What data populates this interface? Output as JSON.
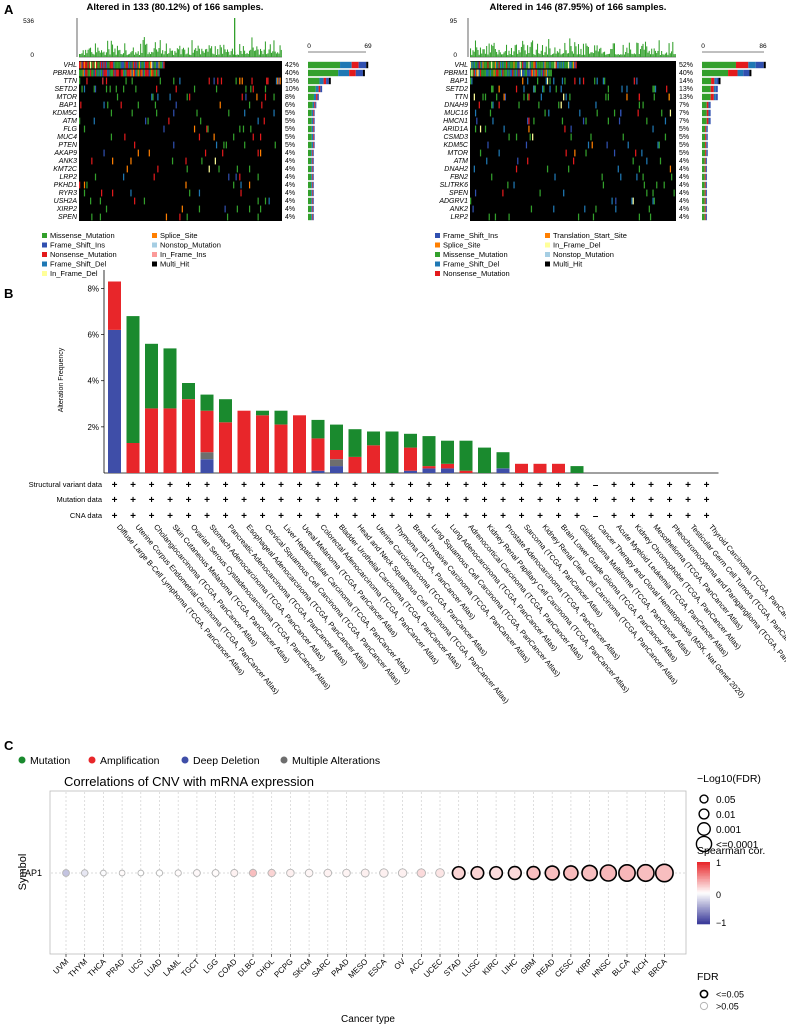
{
  "panel_labels": [
    "A",
    "B",
    "C"
  ],
  "colors": {
    "Missense_Mutation": "#33a02c",
    "Frame_Shift_Ins": "#3050b0",
    "Nonsense_Mutation": "#e31a1c",
    "Frame_Shift_Del": "#1f78b4",
    "In_Frame_Del": "#ffff99",
    "Splice_Site": "#ff7f00",
    "Nonstop_Mutation": "#a6cee3",
    "In_Frame_Ins": "#fb9a99",
    "Multi_Hit": "#000000",
    "Translation_Start_Site": "#ff7f00",
    "oncoprint_bg": "#cfcfcf",
    "mutation": "#1a8a2e",
    "amplification": "#e8262a",
    "deep_deletion": "#3f4ea8",
    "multiple_alterations": "#6e6e6e",
    "spearman_high": "#e8262a",
    "spearman_mid": "#ffffff",
    "spearman_low": "#3b3b9a"
  },
  "chart_data": [
    {
      "type": "heatmap",
      "title": "Altered in 133 (80.12%) of 166 samples.",
      "tmb_axis_ticks": [
        "536",
        "0"
      ],
      "bar_axis_ticks": [
        "0",
        "69"
      ],
      "genes": [
        "VHL",
        "PBRM1",
        "TTN",
        "SETD2",
        "MTOR",
        "BAP1",
        "KDM5C",
        "ATM",
        "FLG",
        "MUC4",
        "PTEN",
        "AKAP9",
        "ANK3",
        "KMT2C",
        "LRP2",
        "PKHD1",
        "RYR3",
        "USH2A",
        "XIRP2",
        "SPEN"
      ],
      "percents": [
        "42%",
        "40%",
        "15%",
        "10%",
        "8%",
        "6%",
        "5%",
        "5%",
        "5%",
        "5%",
        "5%",
        "4%",
        "4%",
        "4%",
        "4%",
        "4%",
        "4%",
        "4%",
        "4%",
        "4%"
      ],
      "pct_values": [
        42,
        40,
        15,
        10,
        8,
        6,
        5,
        5,
        5,
        5,
        5,
        4,
        4,
        4,
        4,
        4,
        4,
        4,
        4,
        4
      ],
      "legend": [
        "Missense_Mutation",
        "Splice_Site",
        "Frame_Shift_Ins",
        "Nonstop_Mutation",
        "Nonsense_Mutation",
        "In_Frame_Ins",
        "Frame_Shift_Del",
        "Multi_Hit",
        "In_Frame_Del"
      ],
      "samples": 166
    },
    {
      "type": "heatmap",
      "title": "Altered in 146 (87.95%) of 166 samples.",
      "tmb_axis_ticks": [
        "95",
        "0"
      ],
      "bar_axis_ticks": [
        "0",
        "86"
      ],
      "genes": [
        "VHL",
        "PBRM1",
        "BAP1",
        "SETD2",
        "TTN",
        "DNAH9",
        "MUC16",
        "HMCN1",
        "ARID1A",
        "CSMD3",
        "KDM5C",
        "MTOR",
        "ATM",
        "DNAH2",
        "FBN2",
        "SLITRK6",
        "SPEN",
        "ADGRV1",
        "ANK2",
        "LRP2"
      ],
      "percents": [
        "52%",
        "40%",
        "14%",
        "13%",
        "13%",
        "7%",
        "7%",
        "7%",
        "5%",
        "5%",
        "5%",
        "5%",
        "4%",
        "4%",
        "4%",
        "4%",
        "4%",
        "4%",
        "4%",
        "4%"
      ],
      "pct_values": [
        52,
        40,
        14,
        13,
        13,
        7,
        7,
        7,
        5,
        5,
        5,
        5,
        4,
        4,
        4,
        4,
        4,
        4,
        4,
        4
      ],
      "legend": [
        "Frame_Shift_Ins",
        "Translation_Start_Site",
        "Splice_Site",
        "In_Frame_Del",
        "Missense_Mutation",
        "Nonstop_Mutation",
        "Frame_Shift_Del",
        "Multi_Hit",
        "Nonsense_Mutation"
      ],
      "samples": 166
    },
    {
      "type": "bar",
      "ylabel": "Alteration Frequency",
      "yticks": [
        "8%",
        "6%",
        "4%",
        "2%"
      ],
      "ylim": [
        0,
        8.8
      ],
      "row_labels": [
        "Structural variant data",
        "Mutation data",
        "CNA data"
      ],
      "legend": [
        "Mutation",
        "Amplification",
        "Deep Deletion",
        "Multiple Alterations"
      ],
      "categories": [
        "Diffuse Large B-Cell Lymphoma (TCGA, PanCancer Atlas)",
        "Uterine Corpus Endometrial Carcinoma (TCGA, PanCancer Atlas)",
        "Cholangiocarcinoma (TCGA, PanCancer Atlas)",
        "Skin Cutaneous Melanoma (TCGA, PanCancer Atlas)",
        "Ovarian Serous Cystadenocarcinoma (TCGA, PanCancer Atlas)",
        "Stomach Adenocarcinoma (TCGA, PanCancer Atlas)",
        "Pancreatic Adenocarcinoma (TCGA, PanCancer Atlas)",
        "Esophageal Adenocarcinoma (TCGA, PanCancer Atlas)",
        "Cervical Squamous Cell Carcinoma (TCGA, PanCancer Atlas)",
        "Liver Hepatocellular Carcinoma (TCGA, PanCancer Atlas)",
        "Uveal Melanoma (TCGA, PanCancer Atlas)",
        "Colorectal Adenocarcinoma (TCGA, PanCancer Atlas)",
        "Bladder Urothelial Carcinoma (TCGA, PanCancer Atlas)",
        "Head and Neck Squamous Cell Carcinoma (TCGA, PanCancer Atlas)",
        "Uterine Carcinosarcoma (TCGA, PanCancer Atlas)",
        "Thymoma (TCGA, PanCancer Atlas)",
        "Breast Invasive Carcinoma (TCGA, PanCancer Atlas)",
        "Lung Squamous Cell Carcinoma (TCGA, PanCancer Atlas)",
        "Lung Adenocarcinoma (TCGA, PanCancer Atlas)",
        "Adrenocortical Carcinoma (TCGA, PanCancer Atlas)",
        "Kidney Renal Papillary Cell Carcinoma (TCGA, PanCancer Atlas)",
        "Prostate Adenocarcinoma (TCGA, PanCancer Atlas)",
        "Sarcoma (TCGA, PanCancer Atlas)",
        "Kidney Renal Clear Cell Carcinoma (TCGA, PanCancer Atlas)",
        "Brain Lower Grade Glioma (TCGA, PanCancer Atlas)",
        "Glioblastoma Multiforme (TCGA, PanCancer Atlas)",
        "Cancer Therapy and Clonal Hematopoiesis (MSK, Nat Genet 2020)",
        "Acute Myeloid Leukemia (TCGA, PanCancer Atlas)",
        "Kidney Chromophobe (TCGA, PanCancer Atlas)",
        "Mesothelioma (TCGA, PanCancer Atlas)",
        "Pheochromocytoma and Paraganglioma (TCGA, PanCancer Atlas)",
        "Testicular Germ Cell Tumors (TCGA, PanCancer Atlas)",
        "Thyroid Carcinoma (TCGA, PanCancer Atlas)"
      ],
      "series": [
        {
          "name": "Deep Deletion",
          "values": [
            6.2,
            0,
            0,
            0,
            0,
            0.6,
            0,
            0,
            0,
            0,
            0,
            0.1,
            0.3,
            0,
            0,
            0,
            0.1,
            0.2,
            0.2,
            0,
            0,
            0.2,
            0,
            0,
            0,
            0,
            0,
            0,
            0,
            0,
            0,
            0,
            0
          ]
        },
        {
          "name": "Multiple Alterations",
          "values": [
            0,
            0,
            0,
            0,
            0,
            0.3,
            0,
            0,
            0,
            0,
            0,
            0,
            0.3,
            0,
            0,
            0,
            0,
            0,
            0,
            0,
            0,
            0,
            0,
            0,
            0,
            0,
            0,
            0,
            0,
            0,
            0,
            0,
            0
          ]
        },
        {
          "name": "Amplification",
          "values": [
            2.1,
            1.3,
            2.8,
            2.8,
            3.2,
            1.8,
            2.2,
            2.7,
            2.5,
            2.1,
            2.5,
            1.4,
            0.4,
            0.7,
            1.2,
            0,
            1.0,
            0.1,
            0.2,
            0.1,
            0,
            0,
            0.4,
            0.4,
            0.4,
            0,
            0,
            0,
            0,
            0,
            0,
            0,
            0
          ]
        },
        {
          "name": "Mutation",
          "values": [
            0,
            5.5,
            2.8,
            2.6,
            0.7,
            0.7,
            1.0,
            0,
            0.2,
            0.6,
            0,
            0.8,
            1.1,
            1.2,
            0.6,
            1.8,
            0.6,
            1.3,
            1.0,
            1.3,
            1.1,
            0.7,
            0,
            0,
            0,
            0.3,
            0,
            0,
            0,
            0,
            0,
            0,
            0
          ]
        }
      ],
      "structural_variant_row": [
        "+",
        "+",
        "+",
        "+",
        "+",
        "+",
        "+",
        "+",
        "+",
        "+",
        "+",
        "+",
        "+",
        "+",
        "+",
        "+",
        "+",
        "+",
        "+",
        "+",
        "+",
        "+",
        "+",
        "+",
        "+",
        "+",
        "–",
        "+",
        "+",
        "+",
        "+",
        "+",
        "+"
      ],
      "mutation_row": [
        "+",
        "+",
        "+",
        "+",
        "+",
        "+",
        "+",
        "+",
        "+",
        "+",
        "+",
        "+",
        "+",
        "+",
        "+",
        "+",
        "+",
        "+",
        "+",
        "+",
        "+",
        "+",
        "+",
        "+",
        "+",
        "+",
        "+",
        "+",
        "+",
        "+",
        "+",
        "+",
        "+"
      ],
      "cna_row": [
        "+",
        "+",
        "+",
        "+",
        "+",
        "+",
        "+",
        "+",
        "+",
        "+",
        "+",
        "+",
        "+",
        "+",
        "+",
        "+",
        "+",
        "+",
        "+",
        "+",
        "+",
        "+",
        "+",
        "+",
        "+",
        "+",
        "–",
        "+",
        "+",
        "+",
        "+",
        "+",
        "+"
      ]
    },
    {
      "type": "scatter",
      "title": "Correlations of CNV with mRNA expression",
      "xlabel": "Cancer type",
      "ylabel": "Symbol",
      "symbol": "TAP1",
      "x": [
        "UVM",
        "THYM",
        "THCA",
        "PRAD",
        "UCS",
        "LUAD",
        "LAML",
        "TGCT",
        "LGG",
        "COAD",
        "DLBC",
        "CHOL",
        "PCPG",
        "SKCM",
        "SARC",
        "PAAD",
        "MESO",
        "ESCA",
        "OV",
        "ACC",
        "UCEC",
        "STAD",
        "LUSC",
        "KIRC",
        "LIHC",
        "GBM",
        "READ",
        "CESC",
        "KIRP",
        "HNSC",
        "BLCA",
        "KICH",
        "BRCA"
      ],
      "spearman": [
        -0.3,
        -0.12,
        -0.02,
        0.02,
        0.0,
        0.0,
        0.02,
        0.03,
        0.02,
        0.06,
        0.3,
        0.2,
        0.07,
        0.04,
        0.06,
        0.05,
        0.07,
        0.07,
        0.07,
        0.17,
        0.12,
        0.2,
        0.2,
        0.16,
        0.17,
        0.3,
        0.3,
        0.32,
        0.3,
        0.33,
        0.33,
        0.3,
        0.3
      ],
      "neg_log10_fdr": [
        0.9,
        0.8,
        0.5,
        0.5,
        0.5,
        0.7,
        0.7,
        0.9,
        0.9,
        1.0,
        1.1,
        1.1,
        1.2,
        1.2,
        1.2,
        1.2,
        1.3,
        1.5,
        1.5,
        1.5,
        1.6,
        3.0,
        3.0,
        3.0,
        3.1,
        3.1,
        3.5,
        3.6,
        4.0,
        4.3,
        4.4,
        4.5,
        4.8
      ],
      "fdr_significant": [
        false,
        false,
        false,
        false,
        false,
        false,
        false,
        false,
        false,
        false,
        false,
        false,
        false,
        false,
        false,
        false,
        false,
        false,
        false,
        false,
        false,
        true,
        true,
        true,
        true,
        true,
        true,
        true,
        true,
        true,
        true,
        true,
        true
      ],
      "size_legend_title": "−Log10(FDR)",
      "size_legend": [
        "0.05",
        "0.01",
        "0.001",
        "<=0.0001"
      ],
      "color_legend_title": "Spearman cor.",
      "color_legend_ticks": [
        "1",
        "0",
        "−1"
      ],
      "fdr_legend_title": "FDR",
      "fdr_legend": [
        "<=0.05",
        ">0.05"
      ]
    }
  ]
}
